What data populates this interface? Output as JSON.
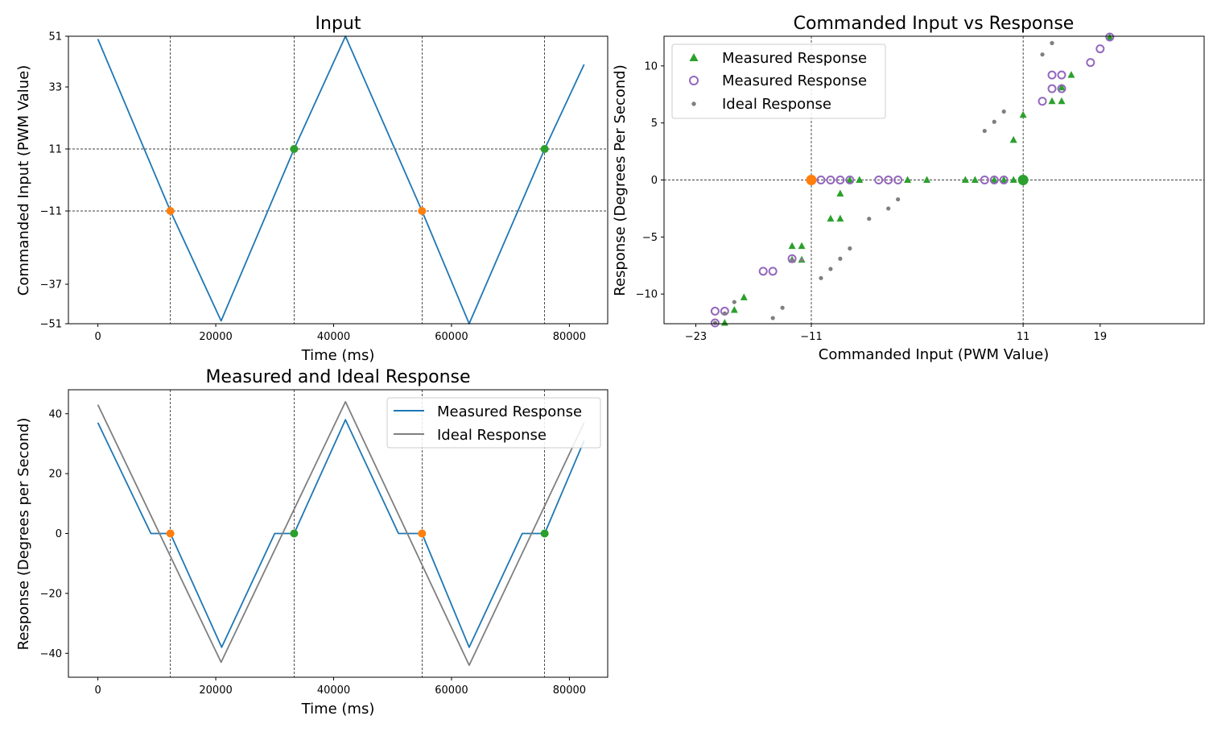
{
  "chart_data": [
    {
      "id": "input",
      "type": "line",
      "title": "Input",
      "xlabel": "Time (ms)",
      "ylabel": "Commanded Input (PWM Value)",
      "xlim": [
        -5000,
        86500
      ],
      "ylim": [
        -51,
        51
      ],
      "x_ticks": [
        0,
        20000,
        40000,
        60000,
        80000
      ],
      "y_ticks": [
        -51,
        -37,
        -11,
        11,
        33,
        51
      ],
      "vlines": [
        12300,
        33300,
        55000,
        75800
      ],
      "hlines": [
        -11,
        11
      ],
      "series": [
        {
          "color": "#1f77b4",
          "points": [
            [
              0,
              50
            ],
            [
              12300,
              -11
            ],
            [
              20900,
              -50
            ],
            [
              33300,
              11
            ],
            [
              42000,
              51
            ],
            [
              55000,
              -11
            ],
            [
              63000,
              -51
            ],
            [
              75800,
              11
            ],
            [
              82500,
              41
            ]
          ]
        }
      ],
      "markers": [
        {
          "x": 12300,
          "y": -11,
          "color": "#ff7f0e"
        },
        {
          "x": 33300,
          "y": 11,
          "color": "#2ca02c"
        },
        {
          "x": 55000,
          "y": -11,
          "color": "#ff7f0e"
        },
        {
          "x": 75800,
          "y": 11,
          "color": "#2ca02c"
        }
      ]
    },
    {
      "id": "scatter",
      "type": "scatter",
      "title": "Commanded Input vs Response",
      "xlabel": "Commanded Input (PWM Value)",
      "ylabel": "Response (Degrees Per Second)",
      "xlim": [
        -26.3,
        29.8
      ],
      "ylim": [
        -12.6,
        12.6
      ],
      "x_ticks": [
        -23,
        -11,
        11,
        19
      ],
      "y_ticks": [
        -10,
        -5,
        0,
        5,
        10
      ],
      "vlines": [
        -11,
        11
      ],
      "hlines": [
        0
      ],
      "legend": {
        "position": "upper-left",
        "entries": [
          "Measured Response",
          "Measured Response",
          "Ideal Response"
        ]
      },
      "series": [
        {
          "name": "Measured Response",
          "marker": "triangle",
          "color": "#2ca02c",
          "points": [
            [
              -20,
              -12.6
            ],
            [
              -19,
              -11.4
            ],
            [
              -18,
              -10.3
            ],
            [
              -13,
              -7
            ],
            [
              -13,
              -5.8
            ],
            [
              -12,
              -5.8
            ],
            [
              -12,
              -7
            ],
            [
              -9,
              -3.4
            ],
            [
              -8,
              -3.4
            ],
            [
              -8,
              -1.2
            ],
            [
              -7,
              0
            ],
            [
              -6,
              0
            ],
            [
              -1,
              0
            ],
            [
              1,
              0
            ],
            [
              5,
              0
            ],
            [
              6,
              0
            ],
            [
              8,
              0
            ],
            [
              9,
              0
            ],
            [
              10,
              0
            ],
            [
              11,
              0
            ],
            [
              10,
              3.5
            ],
            [
              11,
              5.7
            ],
            [
              14,
              6.9
            ],
            [
              15,
              6.9
            ],
            [
              16,
              9.2
            ],
            [
              15,
              8.1
            ],
            [
              20,
              12.6
            ]
          ]
        },
        {
          "name": "Measured Response",
          "marker": "circle-open",
          "color": "#9467bd",
          "points": [
            [
              -21,
              -12.6
            ],
            [
              -21,
              -11.5
            ],
            [
              -20,
              -11.5
            ],
            [
              -16,
              -8
            ],
            [
              -15,
              -8
            ],
            [
              -13,
              -6.9
            ],
            [
              -10,
              0
            ],
            [
              -9,
              0
            ],
            [
              -8,
              0
            ],
            [
              -7,
              0
            ],
            [
              -4,
              0
            ],
            [
              -3,
              0
            ],
            [
              -2,
              0
            ],
            [
              7,
              0
            ],
            [
              8,
              0
            ],
            [
              9,
              0
            ],
            [
              13,
              6.9
            ],
            [
              14,
              8
            ],
            [
              15,
              8
            ],
            [
              14,
              9.2
            ],
            [
              15,
              9.2
            ],
            [
              18,
              10.3
            ],
            [
              19,
              11.5
            ],
            [
              20,
              12.6
            ]
          ]
        },
        {
          "name": "Ideal Response",
          "marker": "dot",
          "color": "#7f7f7f",
          "points": [
            [
              -21,
              -12.7
            ],
            [
              -20,
              -11.7
            ],
            [
              -19,
              -10.7
            ],
            [
              -15,
              -12.1
            ],
            [
              -14,
              -11.2
            ],
            [
              -13,
              -7
            ],
            [
              -12,
              -7
            ],
            [
              -10,
              -8.6
            ],
            [
              -9,
              -7.8
            ],
            [
              -8,
              -6.9
            ],
            [
              -7,
              -6
            ],
            [
              -5,
              -3.4
            ],
            [
              -3,
              -2.5
            ],
            [
              -2,
              -1.7
            ],
            [
              7,
              4.3
            ],
            [
              8,
              5.1
            ],
            [
              9,
              6
            ],
            [
              13,
              11
            ],
            [
              14,
              12
            ]
          ]
        }
      ],
      "markers": [
        {
          "x": -11,
          "y": 0,
          "color": "#ff7f0e"
        },
        {
          "x": 11,
          "y": 0,
          "color": "#2ca02c"
        }
      ]
    },
    {
      "id": "response",
      "type": "line",
      "title": "Measured and Ideal Response",
      "xlabel": "Time (ms)",
      "ylabel": "Response (Degrees per Second)",
      "xlim": [
        -5000,
        86500
      ],
      "ylim": [
        -48,
        48
      ],
      "x_ticks": [
        0,
        20000,
        40000,
        60000,
        80000
      ],
      "y_ticks": [
        -40,
        -20,
        0,
        20,
        40
      ],
      "vlines": [
        12300,
        33300,
        55000,
        75800
      ],
      "legend": {
        "position": "upper-right",
        "entries": [
          "Measured Response",
          "Ideal Response"
        ]
      },
      "series": [
        {
          "name": "Measured Response",
          "color": "#1f77b4",
          "points": [
            [
              0,
              37
            ],
            [
              9000,
              0
            ],
            [
              12300,
              0
            ],
            [
              21000,
              -38
            ],
            [
              30000,
              0
            ],
            [
              33300,
              0
            ],
            [
              42000,
              38
            ],
            [
              51000,
              0
            ],
            [
              55000,
              0
            ],
            [
              63000,
              -38
            ],
            [
              72000,
              0
            ],
            [
              75800,
              0
            ],
            [
              82500,
              31
            ]
          ]
        },
        {
          "name": "Ideal Response",
          "color": "#7f7f7f",
          "points": [
            [
              0,
              43
            ],
            [
              20900,
              -43
            ],
            [
              42000,
              44
            ],
            [
              63000,
              -44
            ],
            [
              82500,
              37
            ]
          ]
        }
      ],
      "markers": [
        {
          "x": 12300,
          "y": 0,
          "color": "#ff7f0e"
        },
        {
          "x": 33300,
          "y": 0,
          "color": "#2ca02c"
        },
        {
          "x": 55000,
          "y": 0,
          "color": "#ff7f0e"
        },
        {
          "x": 75800,
          "y": 0,
          "color": "#2ca02c"
        }
      ]
    }
  ]
}
